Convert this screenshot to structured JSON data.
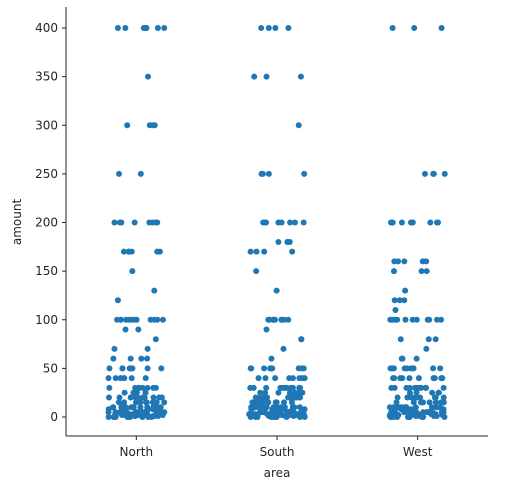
{
  "chart_data": {
    "type": "scatter",
    "subtype": "strip",
    "title": "",
    "xlabel": "area",
    "ylabel": "amount",
    "categories": [
      "North",
      "South",
      "West"
    ],
    "ylim": [
      -20,
      420
    ],
    "yticks": [
      0,
      50,
      100,
      150,
      200,
      250,
      300,
      350,
      400
    ],
    "grid": false,
    "legend": "none",
    "marker_color": "#1f77b4",
    "series": [
      {
        "category": "North",
        "y": [
          400,
          400,
          400,
          400,
          400,
          400,
          400,
          400,
          350,
          300,
          300,
          300,
          300,
          250,
          250,
          200,
          200,
          200,
          200,
          200,
          200,
          200,
          200,
          170,
          170,
          170,
          170,
          170,
          170,
          150,
          130,
          120,
          100,
          100,
          100,
          100,
          100,
          100,
          100,
          100,
          100,
          100,
          100,
          90,
          90,
          80,
          70,
          70,
          60,
          60,
          60,
          60,
          50,
          50,
          50,
          50,
          50,
          50,
          50,
          50,
          50,
          40,
          40,
          40,
          40,
          40,
          40,
          40,
          30,
          30,
          30,
          30,
          30,
          30,
          30,
          30,
          25,
          25,
          25,
          25,
          20,
          20,
          20,
          20,
          20,
          20,
          20,
          20,
          20,
          20,
          20,
          15,
          15,
          15,
          15,
          15,
          15,
          15,
          15,
          15,
          10,
          10,
          10,
          10,
          10,
          10,
          10,
          10,
          10,
          10,
          10,
          10,
          10,
          10,
          8,
          8,
          8,
          8,
          8,
          5,
          5,
          5,
          5,
          5,
          5,
          5,
          5,
          5,
          5,
          5,
          5,
          5,
          5,
          5,
          5,
          5,
          3,
          3,
          3,
          3,
          3,
          3,
          2,
          2,
          2,
          2,
          2,
          2,
          2,
          1,
          1,
          1,
          1,
          1,
          1,
          1,
          0,
          0,
          0,
          0,
          0,
          0,
          0,
          0,
          0,
          0
        ]
      },
      {
        "category": "South",
        "y": [
          400,
          400,
          400,
          400,
          350,
          350,
          350,
          300,
          250,
          250,
          250,
          250,
          200,
          200,
          200,
          200,
          200,
          200,
          200,
          200,
          180,
          180,
          180,
          180,
          170,
          170,
          170,
          170,
          150,
          130,
          100,
          100,
          100,
          100,
          100,
          100,
          100,
          100,
          100,
          90,
          80,
          80,
          70,
          60,
          50,
          50,
          50,
          50,
          50,
          50,
          50,
          50,
          50,
          50,
          40,
          40,
          40,
          40,
          40,
          40,
          40,
          40,
          30,
          30,
          30,
          30,
          30,
          30,
          30,
          30,
          30,
          30,
          30,
          30,
          25,
          25,
          25,
          25,
          25,
          25,
          25,
          20,
          20,
          20,
          20,
          20,
          20,
          20,
          20,
          20,
          20,
          20,
          20,
          20,
          15,
          15,
          15,
          15,
          15,
          15,
          15,
          15,
          15,
          15,
          15,
          10,
          10,
          10,
          10,
          10,
          10,
          10,
          10,
          10,
          10,
          10,
          10,
          10,
          10,
          10,
          8,
          8,
          8,
          8,
          8,
          8,
          5,
          5,
          5,
          5,
          5,
          5,
          5,
          5,
          5,
          5,
          5,
          5,
          5,
          5,
          5,
          5,
          5,
          5,
          3,
          3,
          3,
          3,
          3,
          3,
          3,
          2,
          2,
          2,
          2,
          2,
          2,
          2,
          1,
          1,
          1,
          1,
          1,
          1,
          1,
          0,
          0,
          0,
          0,
          0,
          0,
          0,
          0,
          0,
          0
        ]
      },
      {
        "category": "West",
        "y": [
          400,
          400,
          400,
          250,
          250,
          250,
          250,
          200,
          200,
          200,
          200,
          200,
          200,
          200,
          200,
          160,
          160,
          160,
          160,
          160,
          150,
          150,
          150,
          130,
          120,
          120,
          120,
          110,
          100,
          100,
          100,
          100,
          100,
          100,
          100,
          100,
          100,
          100,
          100,
          80,
          80,
          80,
          70,
          60,
          60,
          60,
          50,
          50,
          50,
          50,
          50,
          50,
          50,
          50,
          50,
          50,
          40,
          40,
          40,
          40,
          40,
          40,
          40,
          40,
          40,
          40,
          30,
          30,
          30,
          30,
          30,
          30,
          30,
          30,
          30,
          30,
          30,
          30,
          25,
          25,
          25,
          25,
          25,
          20,
          20,
          20,
          20,
          20,
          20,
          20,
          20,
          20,
          20,
          20,
          15,
          15,
          15,
          15,
          15,
          15,
          15,
          15,
          15,
          10,
          10,
          10,
          10,
          10,
          10,
          10,
          10,
          10,
          10,
          10,
          10,
          10,
          10,
          8,
          8,
          8,
          8,
          8,
          5,
          5,
          5,
          5,
          5,
          5,
          5,
          5,
          5,
          5,
          5,
          5,
          5,
          5,
          5,
          5,
          3,
          3,
          3,
          3,
          3,
          3,
          2,
          2,
          2,
          2,
          2,
          2,
          2,
          1,
          1,
          1,
          1,
          1,
          1,
          1,
          0,
          0,
          0,
          0,
          0,
          0,
          0,
          0,
          0,
          0
        ]
      }
    ]
  }
}
